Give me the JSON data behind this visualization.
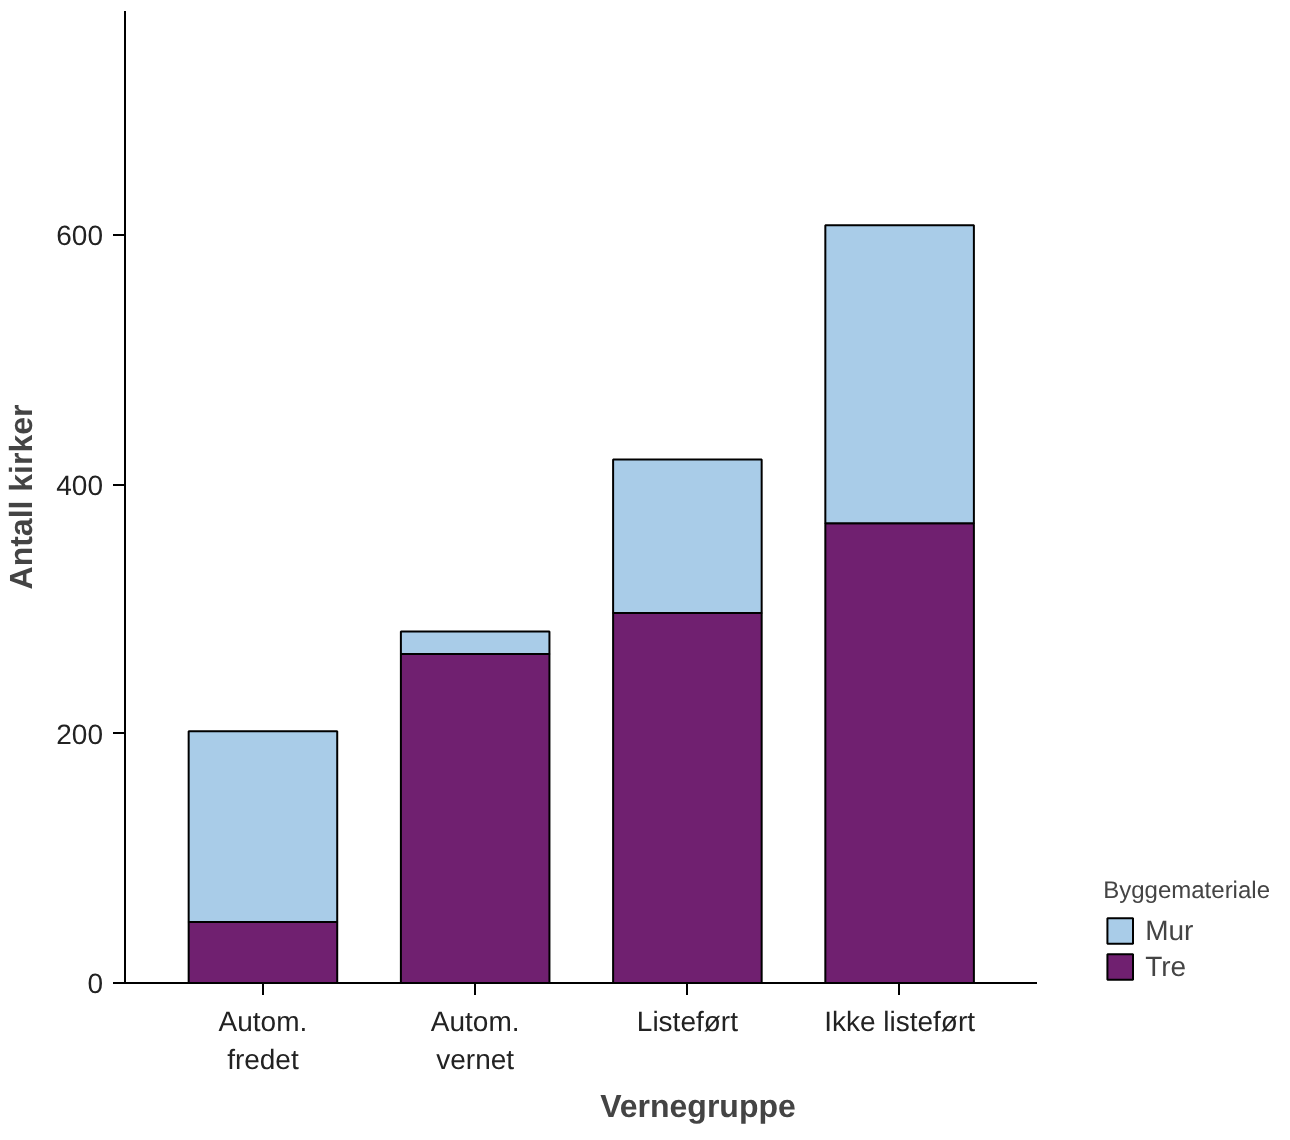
{
  "chart_data": {
    "type": "bar",
    "stacked": true,
    "xlabel": "Vernegruppe",
    "ylabel": "Antall kirker",
    "legend_title": "Byggemateriale",
    "legend": "right",
    "grid": false,
    "categories": [
      "Autom.\nfredet",
      "Autom.\nvernet",
      "Listeført",
      "Ikke listeført"
    ],
    "ylim": [
      0,
      780
    ],
    "yticks": [
      0,
      200,
      400,
      600
    ],
    "series": [
      {
        "name": "Tre",
        "color": "#702070",
        "values": [
          49,
          264,
          297,
          369
        ]
      },
      {
        "name": "Mur",
        "color": "#a9cce8",
        "values": [
          153,
          18,
          123,
          239
        ]
      }
    ]
  }
}
